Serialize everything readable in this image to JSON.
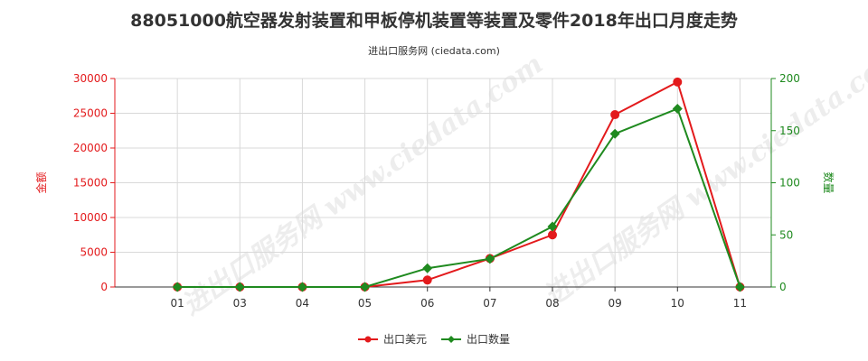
{
  "title": "88051000航空器发射装置和甲板停机装置等装置及零件2018年出口月度走势",
  "subtitle": "进出口服务网 (ciedata.com)",
  "watermark": "进出口服务网 www.ciedata.com",
  "colors": {
    "amount": "#e31a1c",
    "quantity": "#1f8a1f",
    "grid": "#d9d9d9",
    "axis": "#333333"
  },
  "chart_data": {
    "type": "line",
    "categories": [
      "01",
      "03",
      "04",
      "05",
      "06",
      "07",
      "08",
      "09",
      "10",
      "11"
    ],
    "y_left": {
      "label": "金额",
      "ylim": [
        0,
        30000
      ],
      "ticks": [
        0,
        5000,
        10000,
        15000,
        20000,
        25000,
        30000
      ]
    },
    "y_right": {
      "label": "数量",
      "ylim": [
        0,
        200
      ],
      "ticks": [
        0,
        50,
        100,
        150,
        200
      ]
    },
    "series": [
      {
        "name": "出口美元",
        "axis": "left",
        "marker": "circle",
        "values": [
          0,
          0,
          0,
          0,
          1000,
          4100,
          7500,
          24800,
          29500,
          0
        ]
      },
      {
        "name": "出口数量",
        "axis": "right",
        "marker": "diamond",
        "values": [
          0,
          0,
          0,
          0,
          18,
          27,
          58,
          147,
          171,
          0
        ]
      }
    ],
    "grid": true,
    "legend_position": "bottom-center"
  }
}
